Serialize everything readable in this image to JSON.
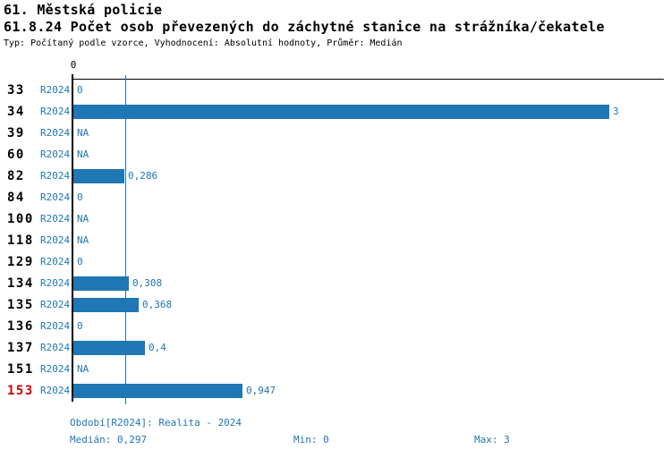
{
  "header": {
    "title": "61. Městská policie",
    "subtitle": "61.8.24 Počet osob převezených do záchytné stanice na strážníka/čekatele",
    "meta": "Typ: Počítaný podle vzorce, Vyhodnocení: Absolutní hodnoty, Průměr: Medián"
  },
  "chart_data": {
    "type": "bar",
    "orientation": "horizontal",
    "title": "61.8.24 Počet osob převezených do záchytné stanice na strážníka/čekatele",
    "value_axis": {
      "zero_label": "0",
      "min": 0,
      "max": 3,
      "grid": false
    },
    "median": 0.297,
    "rows": [
      {
        "id": "33",
        "series": "R2024",
        "value": 0,
        "value_label": "0",
        "highlighted": false
      },
      {
        "id": "34",
        "series": "R2024",
        "value": 3,
        "value_label": "3",
        "highlighted": false
      },
      {
        "id": "39",
        "series": "R2024",
        "value": null,
        "value_label": "NA",
        "highlighted": false
      },
      {
        "id": "60",
        "series": "R2024",
        "value": null,
        "value_label": "NA",
        "highlighted": false
      },
      {
        "id": "82",
        "series": "R2024",
        "value": 0.286,
        "value_label": "0,286",
        "highlighted": false
      },
      {
        "id": "84",
        "series": "R2024",
        "value": 0,
        "value_label": "0",
        "highlighted": false
      },
      {
        "id": "100",
        "series": "R2024",
        "value": null,
        "value_label": "NA",
        "highlighted": false
      },
      {
        "id": "118",
        "series": "R2024",
        "value": null,
        "value_label": "NA",
        "highlighted": false
      },
      {
        "id": "129",
        "series": "R2024",
        "value": 0,
        "value_label": "0",
        "highlighted": false
      },
      {
        "id": "134",
        "series": "R2024",
        "value": 0.308,
        "value_label": "0,308",
        "highlighted": false
      },
      {
        "id": "135",
        "series": "R2024",
        "value": 0.368,
        "value_label": "0,368",
        "highlighted": false
      },
      {
        "id": "136",
        "series": "R2024",
        "value": 0,
        "value_label": "0",
        "highlighted": false
      },
      {
        "id": "137",
        "series": "R2024",
        "value": 0.4,
        "value_label": "0,4",
        "highlighted": false
      },
      {
        "id": "151",
        "series": "R2024",
        "value": null,
        "value_label": "NA",
        "highlighted": false
      },
      {
        "id": "153",
        "series": "R2024",
        "value": 0.947,
        "value_label": "0,947",
        "highlighted": true
      }
    ]
  },
  "footer": {
    "period": "Období[R2024]: Realita - 2024",
    "median": "Medián: 0,297",
    "min": "Min: 0",
    "max": "Max: 3"
  },
  "colors": {
    "bar": "#1F77B4",
    "blue_text": "#1F77B4",
    "highlight_text": "#CC0000",
    "axis": "#000000"
  }
}
